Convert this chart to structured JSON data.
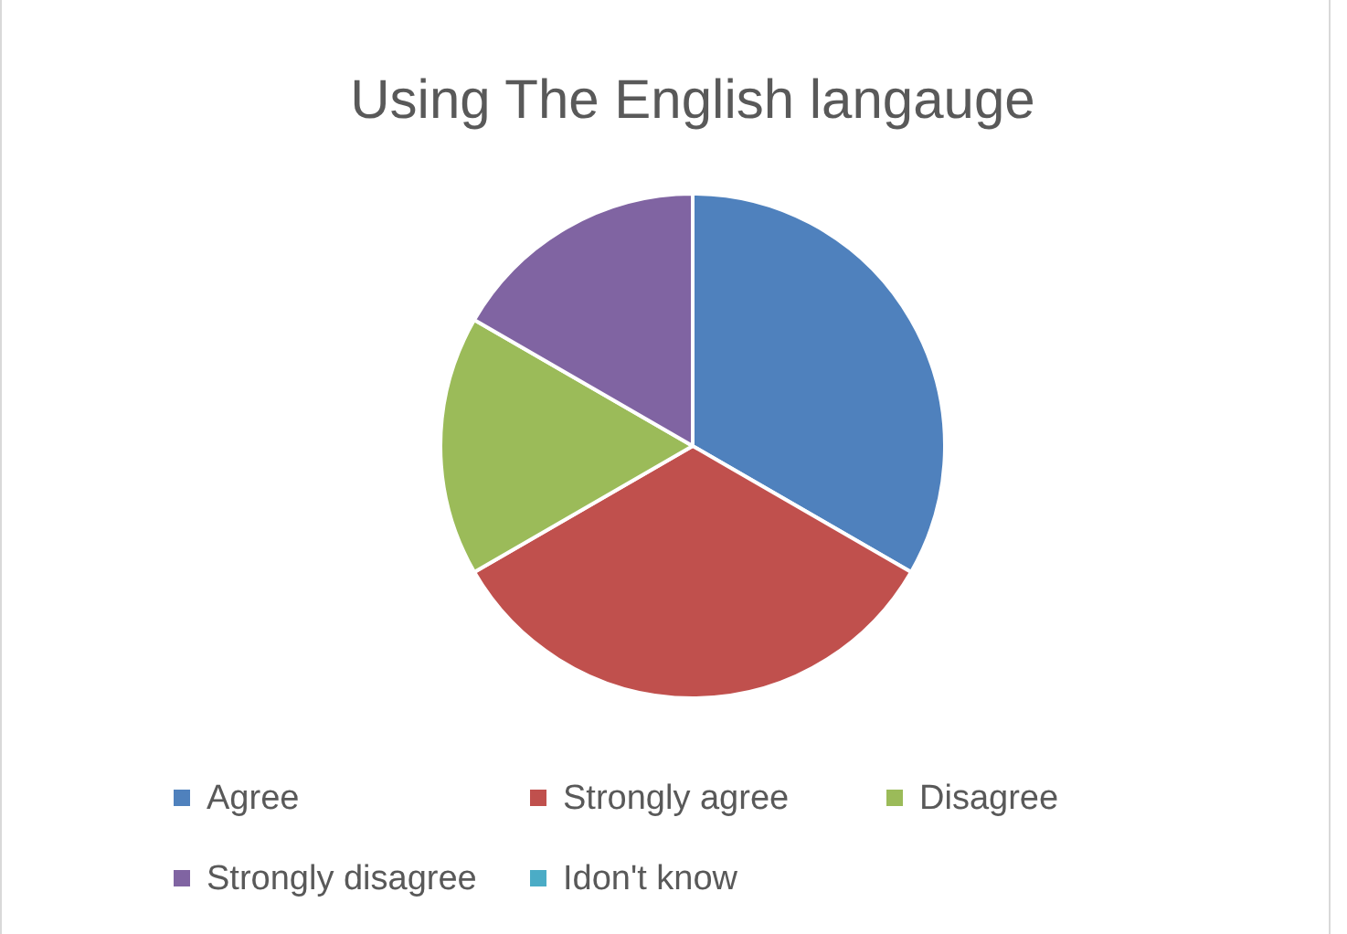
{
  "chart_data": {
    "type": "pie",
    "title": "Using The English langauge",
    "categories": [
      "Agree",
      "Strongly agree",
      "Disagree",
      "Strongly disagree",
      "Idon't know"
    ],
    "values": [
      33.33,
      33.33,
      16.67,
      16.67,
      0
    ],
    "colors": [
      "#4f81bd",
      "#c0504d",
      "#9bbb59",
      "#8064a2",
      "#4bacc6"
    ],
    "legend": "bottom"
  }
}
